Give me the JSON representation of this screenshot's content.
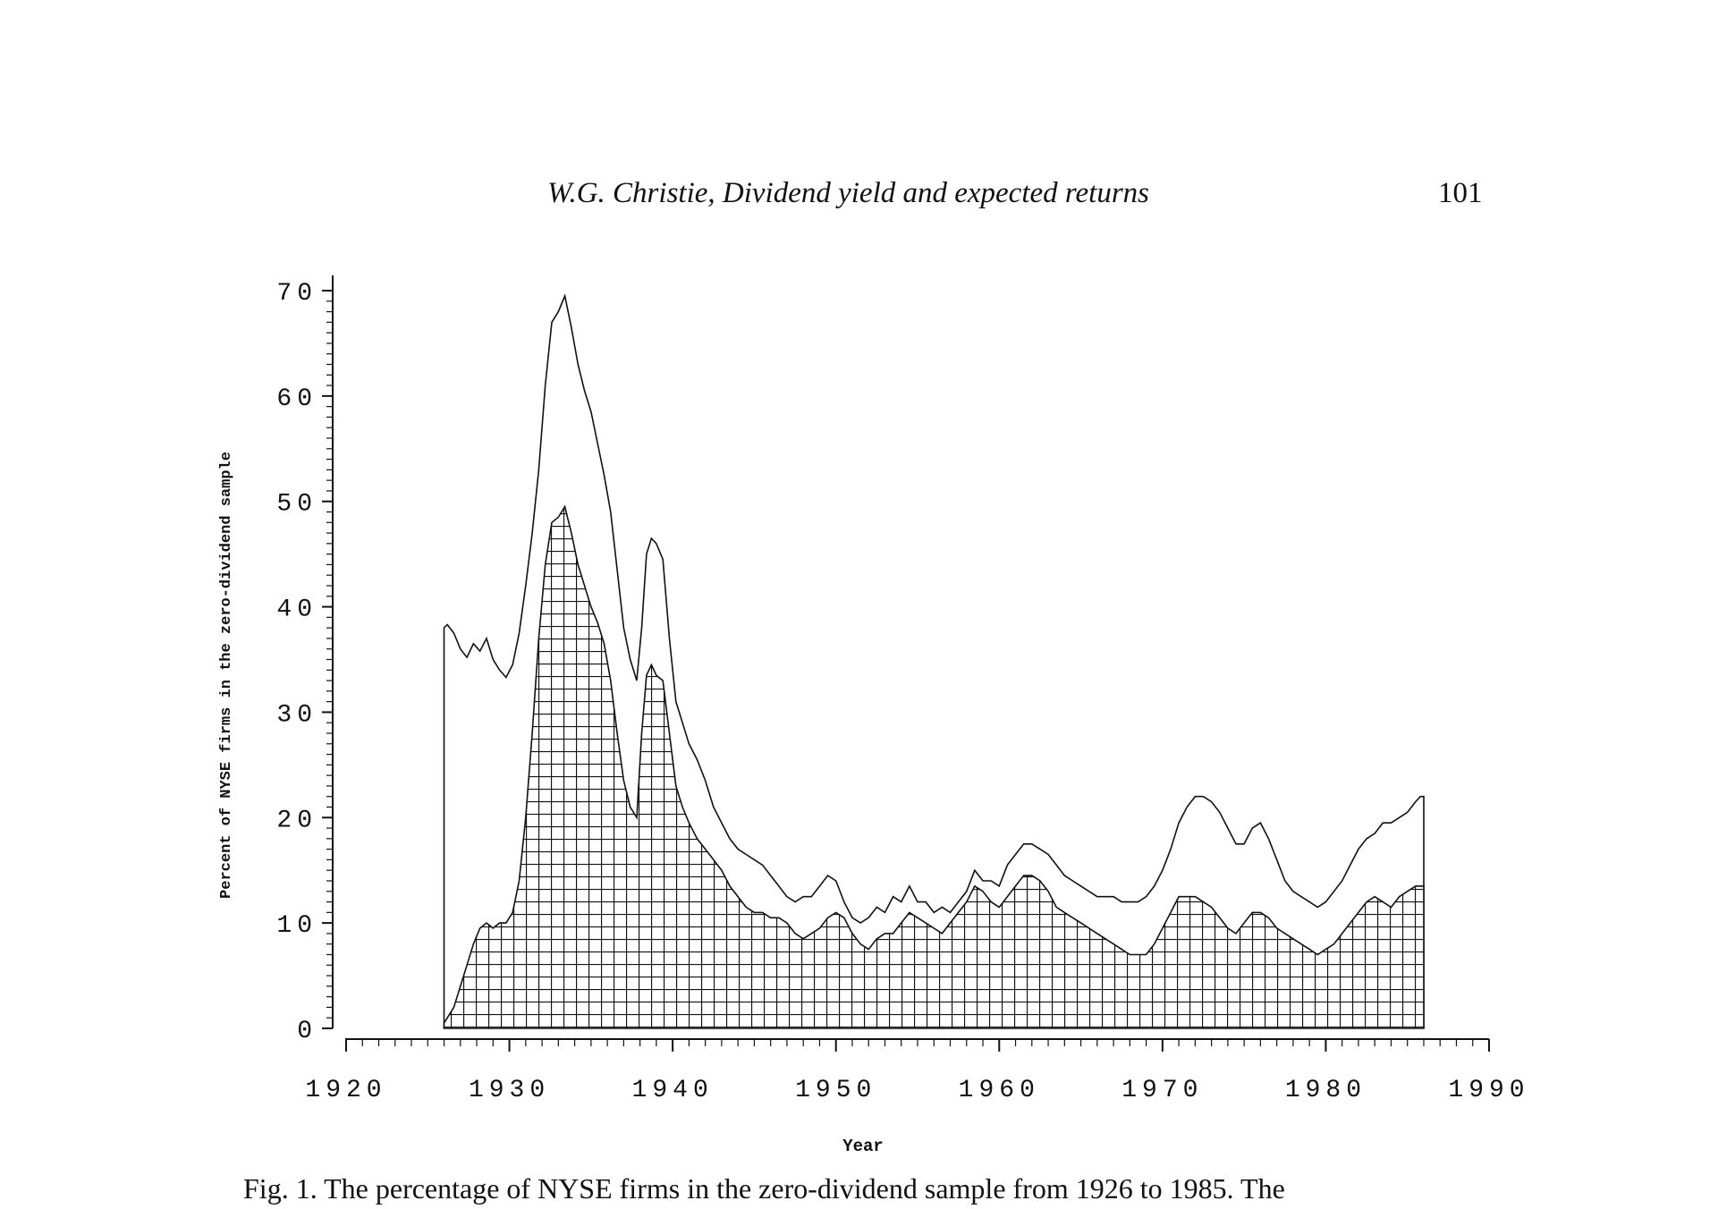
{
  "page": {
    "running_title": "W.G. Christie, Dividend yield and expected returns",
    "page_number": "101",
    "caption": "Fig. 1. The percentage of NYSE firms in the zero-dividend sample from 1926 to 1985. The"
  },
  "chart_data": {
    "type": "area",
    "title": "",
    "xlabel": "Year",
    "ylabel": "Percent of NYSE firms in the zero-dividend sample",
    "xlim": [
      1920,
      1990
    ],
    "ylim": [
      0,
      70
    ],
    "x_ticks": [
      "1920",
      "1930",
      "1940",
      "1950",
      "1960",
      "1970",
      "1980",
      "1990"
    ],
    "y_ticks": [
      "0",
      "10",
      "20",
      "30",
      "40",
      "50",
      "60",
      "70"
    ],
    "grid": false,
    "series": [
      {
        "style": "line",
        "x": [
          1926.0,
          1926.2,
          1926.6,
          1927.0,
          1927.4,
          1927.8,
          1928.2,
          1928.6,
          1929.0,
          1929.4,
          1929.8,
          1930.2,
          1930.6,
          1931.0,
          1931.4,
          1931.8,
          1932.2,
          1932.6,
          1933.0,
          1933.4,
          1933.8,
          1934.2,
          1934.6,
          1935.0,
          1935.4,
          1935.8,
          1936.2,
          1936.6,
          1937.0,
          1937.4,
          1937.8,
          1938.1,
          1938.4,
          1938.7,
          1939.0,
          1939.4,
          1939.8,
          1940.2,
          1940.6,
          1941.0,
          1941.5,
          1942.0,
          1942.5,
          1943.0,
          1943.5,
          1944.0,
          1944.5,
          1945.0,
          1945.5,
          1946.0,
          1946.5,
          1947.0,
          1947.5,
          1948.0,
          1948.5,
          1949.0,
          1949.5,
          1950.0,
          1950.5,
          1951.0,
          1951.5,
          1952.0,
          1952.5,
          1953.0,
          1953.5,
          1954.0,
          1954.5,
          1955.0,
          1955.5,
          1956.0,
          1956.5,
          1957.0,
          1957.5,
          1958.0,
          1958.5,
          1959.0,
          1959.5,
          1960.0,
          1960.5,
          1961.0,
          1961.5,
          1962.0,
          1962.5,
          1963.0,
          1963.5,
          1964.0,
          1964.5,
          1965.0,
          1965.5,
          1966.0,
          1966.5,
          1967.0,
          1967.5,
          1968.0,
          1968.5,
          1969.0,
          1969.5,
          1970.0,
          1970.5,
          1971.0,
          1971.5,
          1972.0,
          1972.5,
          1973.0,
          1973.5,
          1974.0,
          1974.5,
          1975.0,
          1975.5,
          1976.0,
          1976.5,
          1977.0,
          1977.5,
          1978.0,
          1978.5,
          1979.0,
          1979.5,
          1980.0,
          1980.5,
          1981.0,
          1981.5,
          1982.0,
          1982.5,
          1983.0,
          1983.5,
          1984.0,
          1984.5,
          1985.0,
          1985.5,
          1985.8,
          1986.0
        ],
        "y": [
          38.0,
          38.3,
          37.5,
          36.0,
          35.2,
          36.5,
          35.8,
          37.0,
          35.0,
          34.0,
          33.3,
          34.5,
          37.5,
          42.0,
          47.0,
          53.0,
          61.0,
          67.0,
          68.0,
          69.5,
          66.5,
          63.0,
          60.5,
          58.5,
          55.5,
          52.5,
          49.0,
          43.5,
          38.0,
          35.0,
          33.0,
          38.0,
          45.0,
          46.5,
          46.0,
          44.5,
          37.0,
          31.0,
          29.0,
          27.0,
          25.5,
          23.5,
          21.0,
          19.5,
          18.0,
          17.0,
          16.5,
          16.0,
          15.5,
          14.5,
          13.5,
          12.5,
          12.0,
          12.5,
          12.5,
          13.5,
          14.5,
          14.0,
          12.0,
          10.5,
          10.0,
          10.5,
          11.5,
          11.0,
          12.5,
          12.0,
          13.5,
          12.0,
          12.0,
          11.0,
          11.5,
          11.0,
          12.0,
          13.0,
          15.0,
          14.0,
          14.0,
          13.5,
          15.5,
          16.5,
          17.5,
          17.5,
          17.0,
          16.5,
          15.5,
          14.5,
          14.0,
          13.5,
          13.0,
          12.5,
          12.5,
          12.5,
          12.0,
          12.0,
          12.0,
          12.5,
          13.5,
          15.0,
          17.0,
          19.5,
          21.0,
          22.0,
          22.0,
          21.5,
          20.5,
          19.0,
          17.5,
          17.5,
          19.0,
          19.5,
          18.0,
          16.0,
          14.0,
          13.0,
          12.5,
          12.0,
          11.5,
          12.0,
          13.0,
          14.0,
          15.5,
          17.0,
          18.0,
          18.5,
          19.5,
          19.5,
          20.0,
          20.5,
          21.5,
          22.0,
          22.0
        ]
      },
      {
        "style": "hatched-area",
        "x": [
          1926.0,
          1926.2,
          1926.6,
          1927.0,
          1927.4,
          1927.8,
          1928.2,
          1928.6,
          1929.0,
          1929.4,
          1929.8,
          1930.2,
          1930.6,
          1931.0,
          1931.4,
          1931.8,
          1932.2,
          1932.6,
          1933.0,
          1933.4,
          1933.8,
          1934.2,
          1934.6,
          1935.0,
          1935.4,
          1935.8,
          1936.2,
          1936.6,
          1937.0,
          1937.4,
          1937.8,
          1938.1,
          1938.4,
          1938.7,
          1939.0,
          1939.4,
          1939.8,
          1940.2,
          1940.6,
          1941.0,
          1941.5,
          1942.0,
          1942.5,
          1943.0,
          1943.5,
          1944.0,
          1944.5,
          1945.0,
          1945.5,
          1946.0,
          1946.5,
          1947.0,
          1947.5,
          1948.0,
          1948.5,
          1949.0,
          1949.5,
          1950.0,
          1950.5,
          1951.0,
          1951.5,
          1952.0,
          1952.5,
          1953.0,
          1953.5,
          1954.0,
          1954.5,
          1955.0,
          1955.5,
          1956.0,
          1956.5,
          1957.0,
          1957.5,
          1958.0,
          1958.5,
          1959.0,
          1959.5,
          1960.0,
          1960.5,
          1961.0,
          1961.5,
          1962.0,
          1962.5,
          1963.0,
          1963.5,
          1964.0,
          1964.5,
          1965.0,
          1965.5,
          1966.0,
          1966.5,
          1967.0,
          1967.5,
          1968.0,
          1968.5,
          1969.0,
          1969.5,
          1970.0,
          1970.5,
          1971.0,
          1971.5,
          1972.0,
          1972.5,
          1973.0,
          1973.5,
          1974.0,
          1974.5,
          1975.0,
          1975.5,
          1976.0,
          1976.5,
          1977.0,
          1977.5,
          1978.0,
          1978.5,
          1979.0,
          1979.5,
          1980.0,
          1980.5,
          1981.0,
          1981.5,
          1982.0,
          1982.5,
          1983.0,
          1983.5,
          1984.0,
          1984.5,
          1985.0,
          1985.5,
          1985.8,
          1986.0
        ],
        "y": [
          0.5,
          1.0,
          2.0,
          4.0,
          6.0,
          8.0,
          9.5,
          10.0,
          9.5,
          10.0,
          10.0,
          11.0,
          14.0,
          20.0,
          28.0,
          37.0,
          44.0,
          48.0,
          48.5,
          49.5,
          47.0,
          44.0,
          42.0,
          40.0,
          38.5,
          36.5,
          33.0,
          28.0,
          23.5,
          21.0,
          20.0,
          28.0,
          33.5,
          34.5,
          33.5,
          33.0,
          28.0,
          23.0,
          21.0,
          19.5,
          18.0,
          17.0,
          16.0,
          15.0,
          13.5,
          12.5,
          11.5,
          11.0,
          11.0,
          10.5,
          10.5,
          10.0,
          9.0,
          8.5,
          9.0,
          9.5,
          10.5,
          11.0,
          10.5,
          9.0,
          8.0,
          7.5,
          8.5,
          9.0,
          9.0,
          10.0,
          11.0,
          10.5,
          10.0,
          9.5,
          9.0,
          10.0,
          11.0,
          12.0,
          13.5,
          13.0,
          12.0,
          11.5,
          12.5,
          13.5,
          14.5,
          14.5,
          14.0,
          13.0,
          11.5,
          11.0,
          10.5,
          10.0,
          9.5,
          9.0,
          8.5,
          8.0,
          7.5,
          7.0,
          7.0,
          7.0,
          8.0,
          9.5,
          11.0,
          12.5,
          12.5,
          12.5,
          12.0,
          11.5,
          10.5,
          9.5,
          9.0,
          10.0,
          11.0,
          11.0,
          10.5,
          9.5,
          9.0,
          8.5,
          8.0,
          7.5,
          7.0,
          7.5,
          8.0,
          9.0,
          10.0,
          11.0,
          12.0,
          12.5,
          12.0,
          11.5,
          12.5,
          13.0,
          13.5,
          13.5,
          13.5
        ]
      }
    ]
  }
}
